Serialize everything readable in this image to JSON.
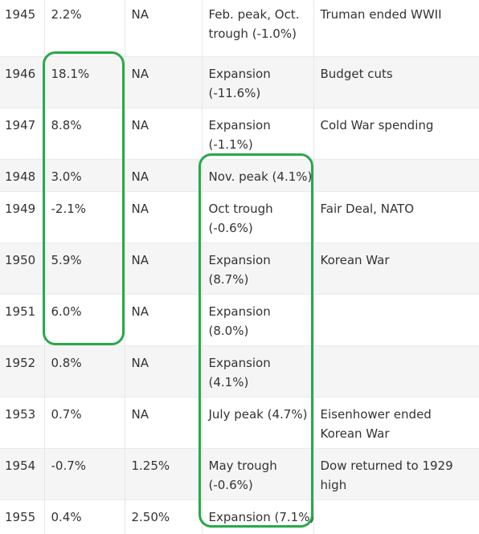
{
  "table": {
    "rows": [
      {
        "year": "1945",
        "gdp": "2.2%",
        "rate": "NA",
        "cycle": [
          "Feb. peak, Oct.",
          "trough (-1.0%)"
        ],
        "event": [
          "Truman ended WWII"
        ]
      },
      {
        "year": "1946",
        "gdp": "18.1%",
        "rate": "NA",
        "cycle": [
          "Expansion",
          "(-11.6%)"
        ],
        "event": [
          "Budget cuts"
        ]
      },
      {
        "year": "1947",
        "gdp": "8.8%",
        "rate": "NA",
        "cycle": [
          "Expansion",
          "(-1.1%)"
        ],
        "event": [
          "Cold War spending"
        ]
      },
      {
        "year": "1948",
        "gdp": "3.0%",
        "rate": "NA",
        "cycle": [
          "Nov. peak (4.1%)"
        ],
        "event": [
          ""
        ]
      },
      {
        "year": "1949",
        "gdp": "-2.1%",
        "rate": "NA",
        "cycle": [
          "Oct trough",
          "(-0.6%)"
        ],
        "event": [
          "Fair Deal, NATO"
        ]
      },
      {
        "year": "1950",
        "gdp": "5.9%",
        "rate": "NA",
        "cycle": [
          "Expansion",
          "(8.7%)"
        ],
        "event": [
          "Korean War"
        ]
      },
      {
        "year": "1951",
        "gdp": "6.0%",
        "rate": "NA",
        "cycle": [
          "Expansion",
          "(8.0%)"
        ],
        "event": [
          ""
        ]
      },
      {
        "year": "1952",
        "gdp": "0.8%",
        "rate": "NA",
        "cycle": [
          "Expansion",
          "(4.1%)"
        ],
        "event": [
          ""
        ]
      },
      {
        "year": "1953",
        "gdp": "0.7%",
        "rate": "NA",
        "cycle": [
          "July peak (4.7%)"
        ],
        "event": [
          "Eisenhower ended",
          "Korean War"
        ]
      },
      {
        "year": "1954",
        "gdp": "-0.7%",
        "rate": "1.25%",
        "cycle": [
          "May trough",
          "(-0.6%)"
        ],
        "event": [
          "Dow returned to 1929",
          "high"
        ]
      },
      {
        "year": "1955",
        "gdp": "0.4%",
        "rate": "2.50%",
        "cycle": [
          "Expansion (7.1%)"
        ],
        "event": [
          ""
        ]
      }
    ]
  },
  "highlight_color": "#2aa84a"
}
